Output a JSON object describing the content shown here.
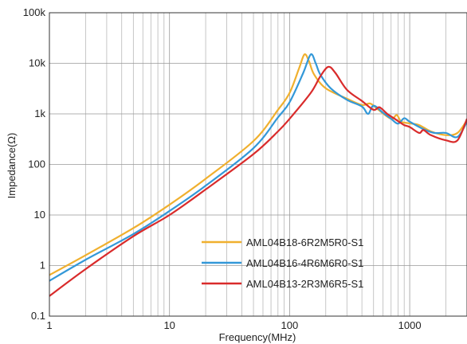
{
  "chart_data": {
    "type": "line",
    "title": "",
    "xlabel": "Frequency(MHz)",
    "ylabel": "Impedance(Ω)",
    "xscale": "log",
    "yscale": "log",
    "xlim": [
      1,
      3000
    ],
    "ylim": [
      0.1,
      100000
    ],
    "grid": true,
    "legend_position": "bottom-right",
    "x_ticks": [
      {
        "value": 1,
        "label": "1"
      },
      {
        "value": 10,
        "label": "10"
      },
      {
        "value": 100,
        "label": "100"
      },
      {
        "value": 1000,
        "label": "1000"
      }
    ],
    "y_ticks": [
      {
        "value": 0.1,
        "label": "0.1"
      },
      {
        "value": 1,
        "label": "1"
      },
      {
        "value": 10,
        "label": "10"
      },
      {
        "value": 100,
        "label": "100"
      },
      {
        "value": 1000,
        "label": "1k"
      },
      {
        "value": 10000,
        "label": "10k"
      },
      {
        "value": 100000,
        "label": "100k"
      }
    ],
    "series": [
      {
        "name": "AML04B18-6R2M5R0-S1",
        "color": "#f0b02e",
        "points": [
          [
            1,
            0.65
          ],
          [
            2,
            1.6
          ],
          [
            5,
            5.5
          ],
          [
            10,
            16
          ],
          [
            20,
            52
          ],
          [
            50,
            290
          ],
          [
            80,
            1200
          ],
          [
            100,
            2600
          ],
          [
            120,
            8000
          ],
          [
            133,
            15000
          ],
          [
            145,
            11000
          ],
          [
            160,
            6000
          ],
          [
            200,
            3200
          ],
          [
            300,
            2000
          ],
          [
            400,
            1500
          ],
          [
            470,
            1600
          ],
          [
            550,
            1200
          ],
          [
            700,
            800
          ],
          [
            780,
            950
          ],
          [
            850,
            700
          ],
          [
            1000,
            650
          ],
          [
            1200,
            600
          ],
          [
            1500,
            450
          ],
          [
            2000,
            380
          ],
          [
            2500,
            420
          ],
          [
            3000,
            750
          ]
        ]
      },
      {
        "name": "AML04B16-4R6M6R0-S1",
        "color": "#3398d8",
        "points": [
          [
            1,
            0.5
          ],
          [
            2,
            1.3
          ],
          [
            5,
            4.2
          ],
          [
            10,
            12
          ],
          [
            20,
            38
          ],
          [
            50,
            210
          ],
          [
            80,
            850
          ],
          [
            100,
            1700
          ],
          [
            130,
            6500
          ],
          [
            150,
            15000
          ],
          [
            165,
            10000
          ],
          [
            180,
            6000
          ],
          [
            220,
            3200
          ],
          [
            300,
            1900
          ],
          [
            400,
            1400
          ],
          [
            450,
            1000
          ],
          [
            500,
            1450
          ],
          [
            600,
            1050
          ],
          [
            700,
            800
          ],
          [
            800,
            640
          ],
          [
            900,
            820
          ],
          [
            1000,
            700
          ],
          [
            1300,
            500
          ],
          [
            1600,
            420
          ],
          [
            2000,
            420
          ],
          [
            2500,
            350
          ],
          [
            3000,
            700
          ]
        ]
      },
      {
        "name": "AML04B13-2R3M6R5-S1",
        "color": "#d92b2b",
        "points": [
          [
            1,
            0.25
          ],
          [
            2,
            0.85
          ],
          [
            5,
            3.8
          ],
          [
            10,
            10
          ],
          [
            20,
            32
          ],
          [
            50,
            160
          ],
          [
            80,
            450
          ],
          [
            100,
            800
          ],
          [
            150,
            2600
          ],
          [
            180,
            5500
          ],
          [
            210,
            8500
          ],
          [
            240,
            6500
          ],
          [
            300,
            3000
          ],
          [
            400,
            1800
          ],
          [
            500,
            1200
          ],
          [
            560,
            1350
          ],
          [
            650,
            1000
          ],
          [
            750,
            800
          ],
          [
            800,
            720
          ],
          [
            900,
            600
          ],
          [
            1000,
            550
          ],
          [
            1200,
            420
          ],
          [
            1300,
            480
          ],
          [
            1500,
            380
          ],
          [
            2000,
            300
          ],
          [
            2500,
            300
          ],
          [
            3000,
            800
          ]
        ]
      }
    ]
  }
}
